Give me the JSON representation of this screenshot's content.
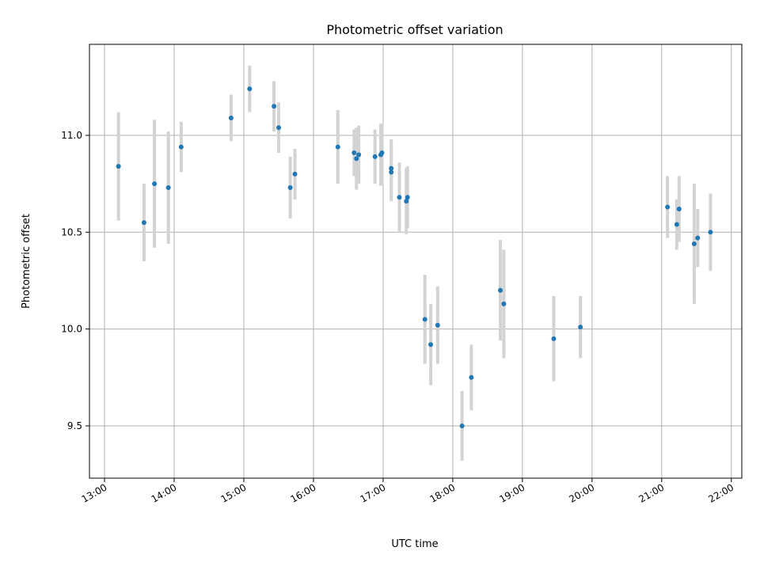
{
  "chart_data": {
    "type": "scatter",
    "title": "Photometric offset variation",
    "xlabel": "UTC time",
    "ylabel": "Photometric offset",
    "x_ticks": [
      "13:00",
      "14:00",
      "15:00",
      "16:00",
      "17:00",
      "18:00",
      "19:00",
      "20:00",
      "21:00",
      "22:00"
    ],
    "y_ticks": [
      "9.5",
      "10.0",
      "10.5",
      "11.0"
    ],
    "xlim": [
      "12:47",
      "22:09"
    ],
    "ylim": [
      9.23,
      11.47
    ],
    "grid": true,
    "marker_color": "#1f77b4",
    "errorbar_color": "#d3d3d3",
    "series": [
      {
        "points": [
          {
            "x": "13:12",
            "y": 10.84,
            "err": 0.28
          },
          {
            "x": "13:34",
            "y": 10.55,
            "err": 0.2
          },
          {
            "x": "13:43",
            "y": 10.75,
            "err": 0.33
          },
          {
            "x": "13:55",
            "y": 10.73,
            "err": 0.29
          },
          {
            "x": "14:06",
            "y": 10.94,
            "err": 0.13
          },
          {
            "x": "14:49",
            "y": 11.09,
            "err": 0.12
          },
          {
            "x": "15:05",
            "y": 11.24,
            "err": 0.12
          },
          {
            "x": "15:26",
            "y": 11.15,
            "err": 0.13
          },
          {
            "x": "15:30",
            "y": 11.04,
            "err": 0.13
          },
          {
            "x": "15:40",
            "y": 10.73,
            "err": 0.16
          },
          {
            "x": "15:44",
            "y": 10.8,
            "err": 0.13
          },
          {
            "x": "16:21",
            "y": 10.94,
            "err": 0.19
          },
          {
            "x": "16:35",
            "y": 10.91,
            "err": 0.12
          },
          {
            "x": "16:37",
            "y": 10.88,
            "err": 0.16
          },
          {
            "x": "16:39",
            "y": 10.9,
            "err": 0.15
          },
          {
            "x": "16:53",
            "y": 10.89,
            "err": 0.14
          },
          {
            "x": "16:58",
            "y": 10.9,
            "err": 0.16
          },
          {
            "x": "16:59",
            "y": 10.91,
            "err": 0.15
          },
          {
            "x": "17:07",
            "y": 10.81,
            "err": 0.15
          },
          {
            "x": "17:07",
            "y": 10.83,
            "err": 0.15
          },
          {
            "x": "17:14",
            "y": 10.68,
            "err": 0.18
          },
          {
            "x": "17:20",
            "y": 10.66,
            "err": 0.17
          },
          {
            "x": "17:21",
            "y": 10.68,
            "err": 0.16
          },
          {
            "x": "17:36",
            "y": 10.05,
            "err": 0.23
          },
          {
            "x": "17:41",
            "y": 9.92,
            "err": 0.21
          },
          {
            "x": "17:47",
            "y": 10.02,
            "err": 0.2
          },
          {
            "x": "18:08",
            "y": 9.5,
            "err": 0.18
          },
          {
            "x": "18:16",
            "y": 9.75,
            "err": 0.17
          },
          {
            "x": "18:41",
            "y": 10.2,
            "err": 0.26
          },
          {
            "x": "18:44",
            "y": 10.13,
            "err": 0.28
          },
          {
            "x": "19:27",
            "y": 9.95,
            "err": 0.22
          },
          {
            "x": "19:50",
            "y": 10.01,
            "err": 0.16
          },
          {
            "x": "21:05",
            "y": 10.63,
            "err": 0.16
          },
          {
            "x": "21:13",
            "y": 10.54,
            "err": 0.13
          },
          {
            "x": "21:15",
            "y": 10.62,
            "err": 0.17
          },
          {
            "x": "21:28",
            "y": 10.44,
            "err": 0.31
          },
          {
            "x": "21:31",
            "y": 10.47,
            "err": 0.15
          },
          {
            "x": "21:42",
            "y": 10.5,
            "err": 0.2
          }
        ]
      }
    ]
  }
}
